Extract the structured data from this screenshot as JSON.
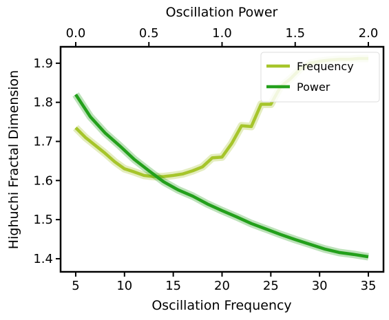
{
  "chart_data": {
    "type": "line",
    "xlabel": "Oscillation Frequency",
    "x2label": "Oscillation Power",
    "ylabel": "Highuchi Fractal Dimension",
    "xlim": [
      3.45,
      36.55
    ],
    "xticks": [
      5,
      10,
      15,
      20,
      25,
      30,
      35
    ],
    "x2lim": [
      -0.1035,
      2.1035
    ],
    "x2ticks": [
      {
        "value": 0,
        "label": "0.0"
      },
      0.5,
      {
        "value": 1,
        "label": "1.0"
      },
      1.5,
      {
        "value": 2,
        "label": "2.0"
      }
    ],
    "ylim": [
      1.3665,
      1.942
    ],
    "yticks": [
      1.4,
      1.5,
      1.6,
      1.7,
      1.8,
      1.9
    ],
    "legend": "upper right",
    "series": [
      {
        "name": "Frequency",
        "color": "#a6c52b",
        "axis": "x",
        "x": [
          5,
          6,
          7,
          8,
          9,
          10,
          11,
          12,
          13,
          14,
          15,
          16,
          17,
          18,
          19,
          20,
          21,
          22,
          23,
          24,
          25,
          26,
          27,
          28,
          29,
          30,
          31,
          32,
          33,
          34,
          35
        ],
        "values": [
          1.735,
          1.71,
          1.69,
          1.67,
          1.648,
          1.63,
          1.622,
          1.613,
          1.61,
          1.61,
          1.613,
          1.617,
          1.625,
          1.635,
          1.658,
          1.66,
          1.695,
          1.74,
          1.738,
          1.795,
          1.795,
          1.84,
          1.86,
          1.885,
          1.9,
          1.905,
          1.908,
          1.91,
          1.91,
          1.912,
          1.912
        ]
      },
      {
        "name": "Power",
        "color": "#23a01b",
        "axis": "x2",
        "x": [
          0,
          0.1,
          0.2,
          0.3,
          0.4,
          0.5,
          0.6,
          0.7,
          0.8,
          0.9,
          1.0,
          1.1,
          1.2,
          1.3,
          1.4,
          1.5,
          1.6,
          1.7,
          1.8,
          1.9,
          2.0
        ],
        "values": [
          1.82,
          1.763,
          1.722,
          1.689,
          1.654,
          1.625,
          1.597,
          1.576,
          1.56,
          1.54,
          1.523,
          1.507,
          1.49,
          1.476,
          1.462,
          1.449,
          1.437,
          1.425,
          1.416,
          1.411,
          1.405
        ]
      }
    ]
  }
}
